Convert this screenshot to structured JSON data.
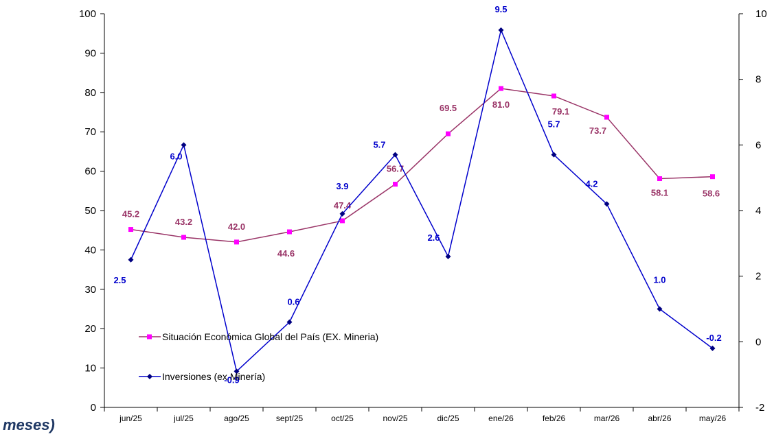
{
  "caption": "meses)",
  "chart_data": {
    "type": "line",
    "categories": [
      "jun/25",
      "jul/25",
      "ago/25",
      "sept/25",
      "oct/25",
      "nov/25",
      "dic/25",
      "ene/26",
      "feb/26",
      "mar/26",
      "abr/26",
      "may/26"
    ],
    "y_left": {
      "lim": [
        0,
        100
      ],
      "ticks": [
        0,
        10,
        20,
        30,
        40,
        50,
        60,
        70,
        80,
        90,
        100
      ]
    },
    "y_right": {
      "lim": [
        -2,
        10
      ],
      "ticks": [
        -2,
        0,
        2,
        4,
        6,
        8,
        10
      ]
    },
    "grid": false,
    "legend_position": "lower-left",
    "series": [
      {
        "name": "Situación Económica Global del País (EX. Mineria)",
        "axis": "left",
        "line_color": "#993366",
        "marker_color": "#ff00ff",
        "label_color": "#993366",
        "marker": "square",
        "values": [
          45.2,
          43.2,
          42.0,
          44.6,
          47.4,
          56.7,
          69.5,
          81.0,
          79.1,
          73.7,
          58.1,
          58.6
        ],
        "labels": [
          "45.2",
          "43.2",
          "42.0",
          "44.6",
          "47.4",
          "56.7",
          "69.5",
          "81.0",
          "79.1",
          "73.7",
          "58.1",
          "58.6"
        ]
      },
      {
        "name": "Inversiones (ex Minería)",
        "axis": "right",
        "line_color": "#0000cc",
        "marker_color": "#000080",
        "label_color": "#0000cc",
        "marker": "diamond",
        "values": [
          2.5,
          6.0,
          -0.9,
          0.6,
          3.9,
          5.7,
          2.6,
          9.5,
          5.7,
          4.2,
          1.0,
          -0.2
        ],
        "labels": [
          "2.5",
          "6.0",
          "-0.9",
          "0.6",
          "3.9",
          "5.7",
          "2.6",
          "9.5",
          "5.7",
          "4.2",
          "1.0",
          "-0.2"
        ]
      }
    ]
  }
}
